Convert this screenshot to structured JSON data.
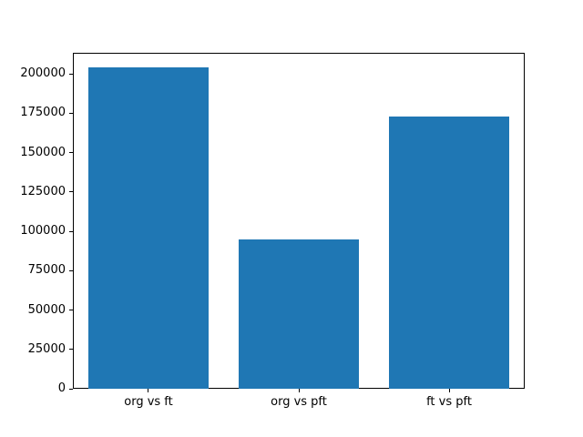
{
  "chart_data": {
    "type": "bar",
    "categories": [
      "org vs ft",
      "org vs pft",
      "ft vs pft"
    ],
    "values": [
      204000,
      95000,
      173000
    ],
    "title": "",
    "xlabel": "",
    "ylabel": "",
    "ylim": [
      0,
      213300
    ],
    "yticks": [
      0,
      25000,
      50000,
      75000,
      100000,
      125000,
      150000,
      175000,
      200000
    ],
    "ytick_labels": [
      "0",
      "25000",
      "50000",
      "75000",
      "100000",
      "125000",
      "150000",
      "175000",
      "200000"
    ],
    "bar_color": "#1f77b4",
    "bar_width_fraction": 0.8,
    "grid": false,
    "legend_position": "none",
    "frame_color": "#000000",
    "background_color": "#ffffff"
  }
}
